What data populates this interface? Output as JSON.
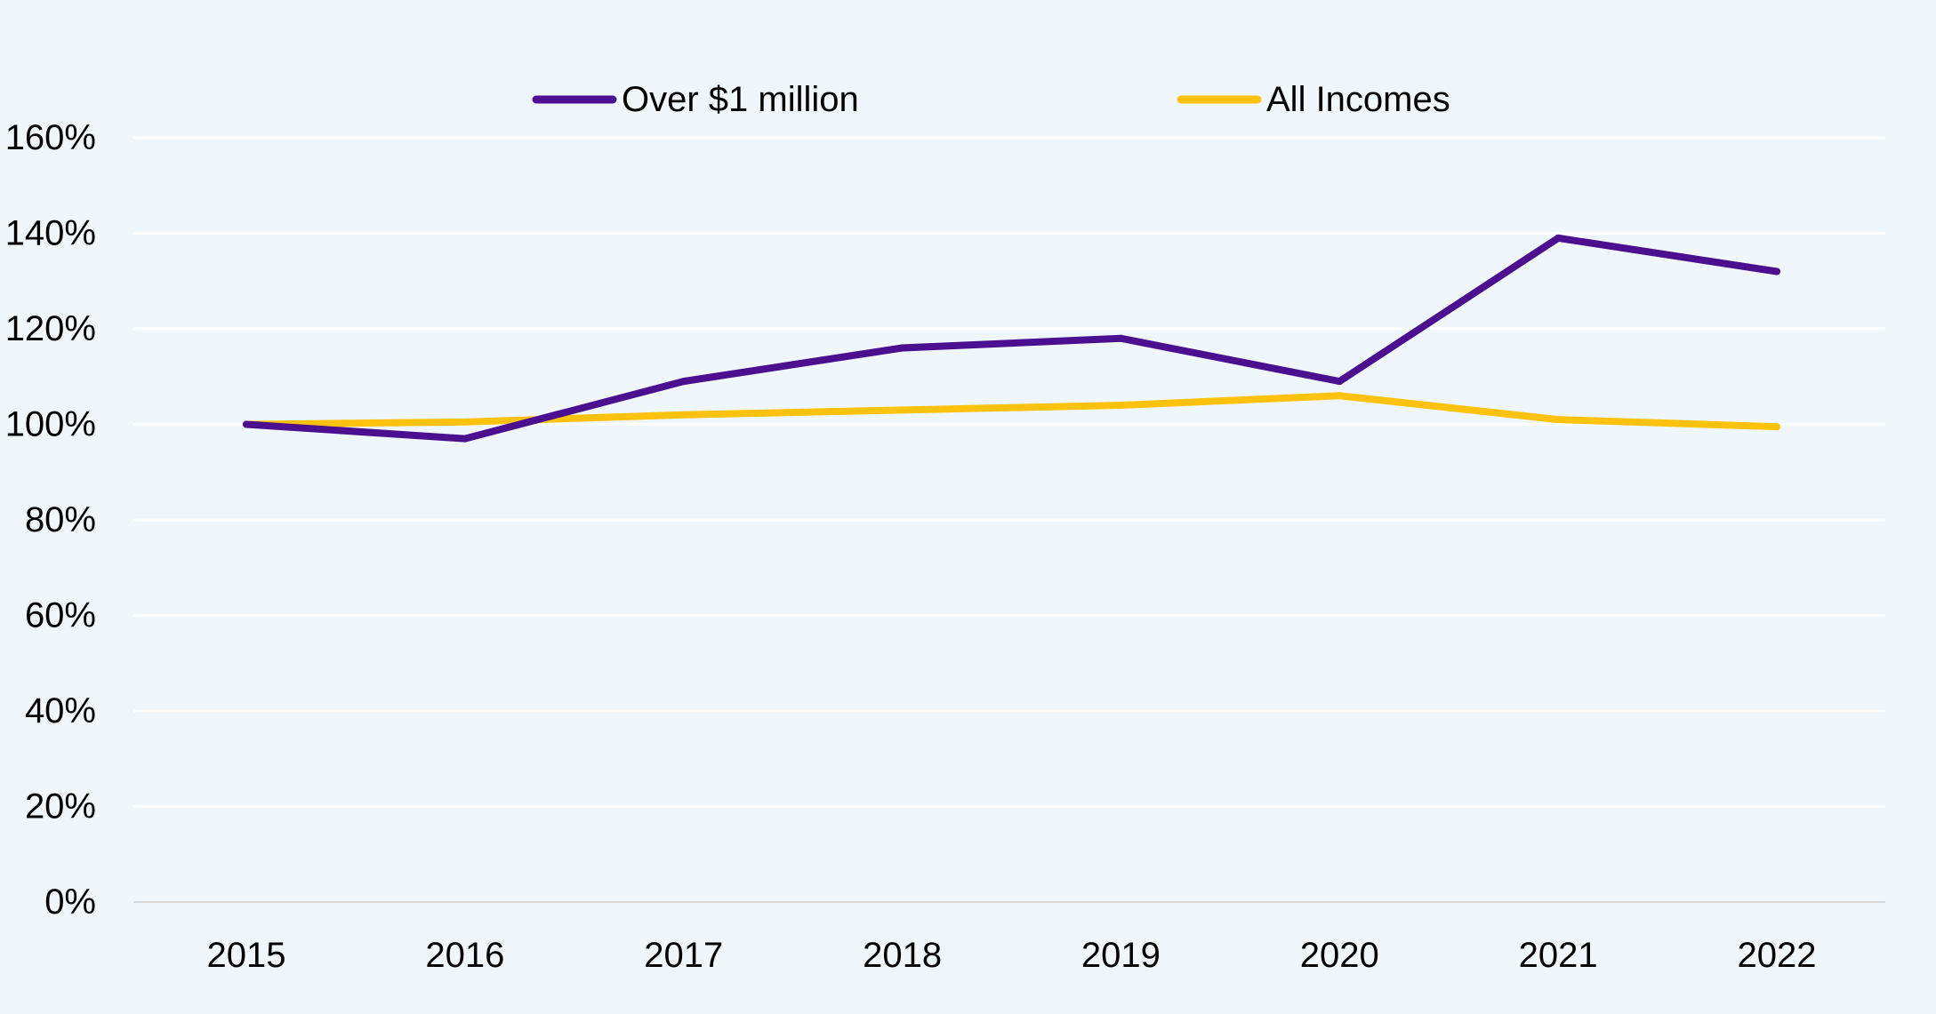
{
  "chart_data": {
    "type": "line",
    "title": "",
    "xlabel": "",
    "ylabel": "",
    "categories": [
      "2015",
      "2016",
      "2017",
      "2018",
      "2019",
      "2020",
      "2021",
      "2022"
    ],
    "ylim": [
      0,
      160
    ],
    "yticks": [
      0,
      20,
      40,
      60,
      80,
      100,
      120,
      140,
      160
    ],
    "ytick_labels": [
      "0%",
      "20%",
      "40%",
      "60%",
      "80%",
      "100%",
      "120%",
      "140%",
      "160%"
    ],
    "grid": true,
    "legend_position": "top-center",
    "series": [
      {
        "name": "Over $1 million",
        "color": "#4b0f8f",
        "values": [
          100,
          97,
          109,
          116,
          118,
          109,
          139,
          132
        ]
      },
      {
        "name": "All Incomes",
        "color": "#ffc20e",
        "values": [
          100,
          100.5,
          102,
          103,
          104,
          106,
          101,
          99.5
        ]
      }
    ],
    "colors": {
      "background": "#eff7fd",
      "gridline": "#ffffff",
      "axis": "#d9d9d9"
    }
  }
}
